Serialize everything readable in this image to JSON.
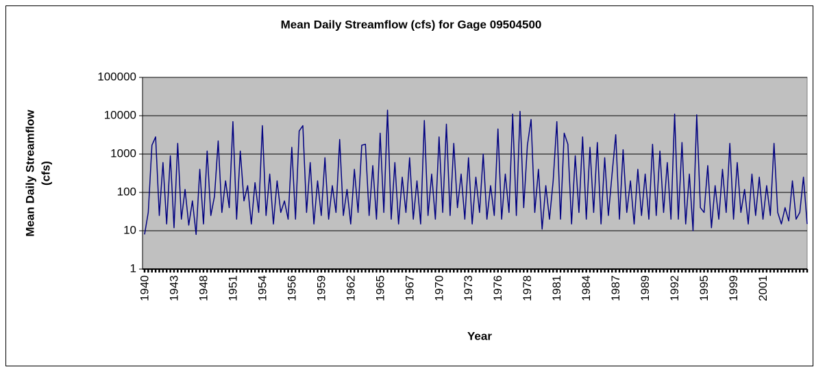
{
  "chart_data": {
    "type": "line",
    "title": "Mean Daily Streamflow (cfs) for Gage 09504500",
    "x_label": "Year",
    "y_label": [
      "Mean Daily Streamflow",
      "(cfs)"
    ],
    "log_scale": true,
    "grid": true,
    "ylim": [
      1,
      100000
    ],
    "yticks": [
      1,
      10,
      100,
      1000,
      10000,
      100000
    ],
    "categories": [
      "1940",
      null,
      null,
      null,
      null,
      null,
      null,
      null,
      "1943",
      null,
      null,
      null,
      null,
      null,
      null,
      null,
      "1948",
      null,
      null,
      null,
      null,
      null,
      null,
      null,
      "1951",
      null,
      null,
      null,
      null,
      null,
      null,
      null,
      "1954",
      null,
      null,
      null,
      null,
      null,
      null,
      null,
      "1956",
      null,
      null,
      null,
      null,
      null,
      null,
      null,
      "1959",
      null,
      null,
      null,
      null,
      null,
      null,
      null,
      "1962",
      null,
      null,
      null,
      null,
      null,
      null,
      null,
      "1965",
      null,
      null,
      null,
      null,
      null,
      null,
      null,
      "1967",
      null,
      null,
      null,
      null,
      null,
      null,
      null,
      "1970",
      null,
      null,
      null,
      null,
      null,
      null,
      null,
      "1973",
      null,
      null,
      null,
      null,
      null,
      null,
      null,
      "1976",
      null,
      null,
      null,
      null,
      null,
      null,
      null,
      "1978",
      null,
      null,
      null,
      null,
      null,
      null,
      null,
      "1981",
      null,
      null,
      null,
      null,
      null,
      null,
      null,
      "1984",
      null,
      null,
      null,
      null,
      null,
      null,
      null,
      "1987",
      null,
      null,
      null,
      null,
      null,
      null,
      null,
      "1989",
      null,
      null,
      null,
      null,
      null,
      null,
      null,
      "1992",
      null,
      null,
      null,
      null,
      null,
      null,
      null,
      "1995",
      null,
      null,
      null,
      null,
      null,
      null,
      null,
      "1999",
      null,
      null,
      null,
      null,
      null,
      null,
      null,
      "2001",
      null,
      null,
      null,
      null,
      null,
      null,
      null,
      null,
      null,
      null,
      null,
      null
    ],
    "series": [
      {
        "name": "Mean Daily Streamflow",
        "color": "#000080",
        "values": [
          8,
          30,
          1700,
          2800,
          25,
          600,
          15,
          900,
          12,
          1900,
          20,
          120,
          14,
          60,
          8,
          400,
          15,
          1200,
          25,
          80,
          2200,
          30,
          200,
          40,
          7000,
          20,
          1200,
          60,
          150,
          15,
          180,
          30,
          5500,
          25,
          300,
          15,
          200,
          30,
          60,
          20,
          1500,
          20,
          4000,
          5500,
          30,
          600,
          15,
          200,
          25,
          800,
          20,
          150,
          30,
          2400,
          25,
          120,
          15,
          400,
          30,
          1700,
          1800,
          25,
          500,
          20,
          3500,
          30,
          14000,
          20,
          600,
          15,
          250,
          30,
          800,
          20,
          200,
          15,
          7500,
          25,
          300,
          20,
          2800,
          30,
          6000,
          25,
          1900,
          40,
          300,
          20,
          800,
          15,
          250,
          30,
          1000,
          20,
          150,
          25,
          4500,
          20,
          300,
          30,
          11000,
          25,
          13000,
          40,
          1700,
          8000,
          30,
          400,
          11,
          150,
          20,
          200,
          7000,
          20,
          3500,
          1800,
          15,
          900,
          30,
          2800,
          20,
          1500,
          30,
          2000,
          15,
          800,
          25,
          300,
          3200,
          20,
          1300,
          30,
          200,
          15,
          400,
          25,
          300,
          20,
          1800,
          25,
          1200,
          30,
          600,
          20,
          11000,
          20,
          2000,
          15,
          300,
          10,
          10500,
          40,
          30,
          500,
          12,
          150,
          20,
          400,
          30,
          1900,
          20,
          600,
          30,
          120,
          15,
          300,
          25,
          250,
          20,
          150,
          25,
          1900,
          30,
          15,
          40,
          18,
          200,
          20,
          30,
          250,
          15
        ]
      }
    ]
  }
}
